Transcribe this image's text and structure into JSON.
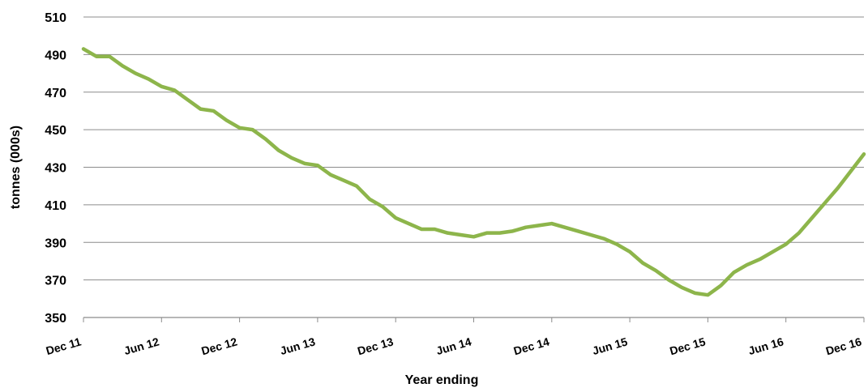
{
  "chart_data": {
    "type": "line",
    "xlabel": "Year ending",
    "ylabel": "tonnes (000s)",
    "ylim": [
      350,
      510
    ],
    "yticks": [
      350,
      370,
      390,
      410,
      430,
      450,
      470,
      490,
      510
    ],
    "grid": true,
    "x_tick_labels": [
      "Dec 11",
      "Jun 12",
      "Dec 12",
      "Jun 13",
      "Dec 13",
      "Jun 14",
      "Dec 14",
      "Jun 15",
      "Dec 15",
      "Jun 16",
      "Dec 16"
    ],
    "series": [
      {
        "color": "#8db54b",
        "x": [
          "Dec 11",
          "Jan 12",
          "Feb 12",
          "Mar 12",
          "Apr 12",
          "May 12",
          "Jun 12",
          "Jul 12",
          "Aug 12",
          "Sep 12",
          "Oct 12",
          "Nov 12",
          "Dec 12",
          "Jan 13",
          "Feb 13",
          "Mar 13",
          "Apr 13",
          "May 13",
          "Jun 13",
          "Jul 13",
          "Aug 13",
          "Sep 13",
          "Oct 13",
          "Nov 13",
          "Dec 13",
          "Jan 14",
          "Feb 14",
          "Mar 14",
          "Apr 14",
          "May 14",
          "Jun 14",
          "Jul 14",
          "Aug 14",
          "Sep 14",
          "Oct 14",
          "Nov 14",
          "Dec 14",
          "Jan 15",
          "Feb 15",
          "Mar 15",
          "Apr 15",
          "May 15",
          "Jun 15",
          "Jul 15",
          "Aug 15",
          "Sep 15",
          "Oct 15",
          "Nov 15",
          "Dec 15",
          "Jan 16",
          "Feb 16",
          "Mar 16",
          "Apr 16",
          "May 16",
          "Jun 16",
          "Jul 16",
          "Aug 16",
          "Sep 16",
          "Oct 16",
          "Nov 16",
          "Dec 16"
        ],
        "values": [
          493,
          489,
          489,
          484,
          480,
          477,
          473,
          471,
          466,
          461,
          460,
          455,
          451,
          450,
          445,
          439,
          435,
          432,
          431,
          426,
          423,
          420,
          413,
          409,
          403,
          400,
          397,
          397,
          395,
          394,
          393,
          395,
          395,
          396,
          398,
          399,
          400,
          398,
          396,
          394,
          392,
          389,
          385,
          379,
          375,
          370,
          366,
          363,
          362,
          367,
          374,
          378,
          381,
          385,
          389,
          395,
          403,
          411,
          419,
          428,
          437
        ]
      }
    ]
  }
}
